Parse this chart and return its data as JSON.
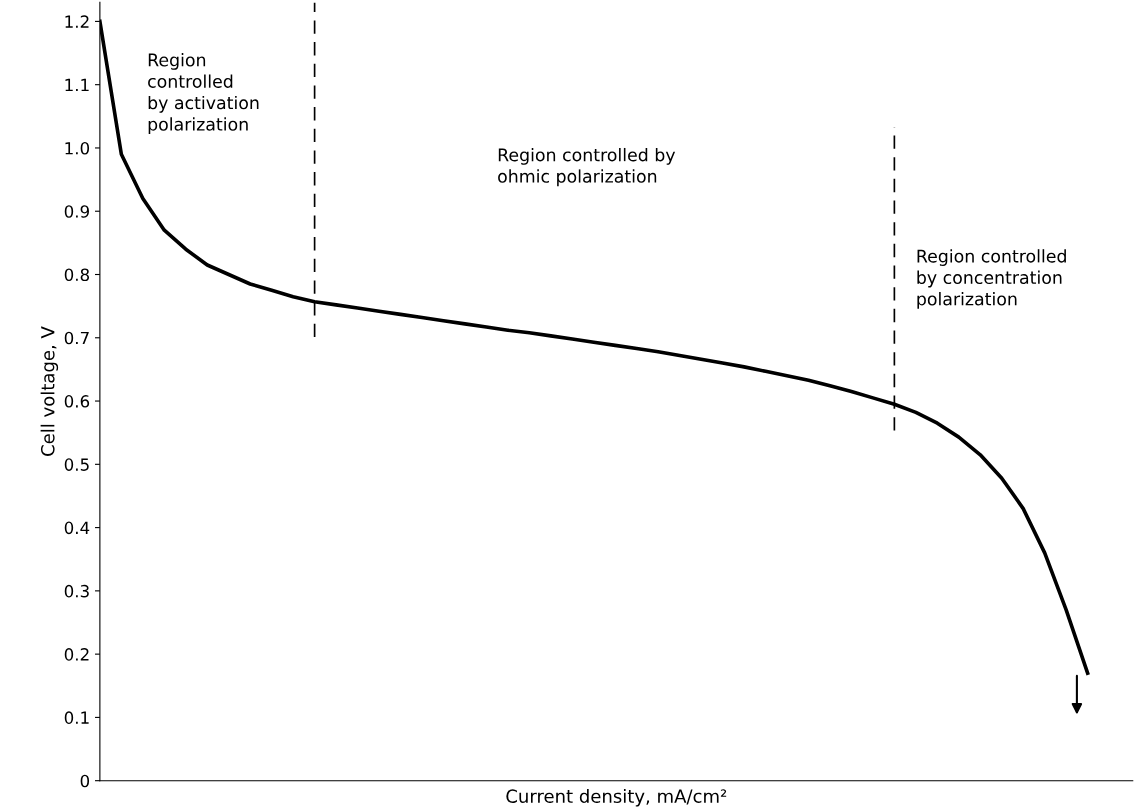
{
  "chart_data": {
    "type": "line",
    "xlabel": "Current density, mA/cm²",
    "ylabel": "Cell voltage, V",
    "categories": [
      null,
      null,
      null,
      null,
      null,
      null,
      null,
      null,
      null,
      null,
      null,
      null,
      null,
      null,
      null,
      null,
      null,
      null,
      null,
      null,
      null,
      null,
      null,
      null,
      null,
      null,
      null,
      null,
      null,
      null,
      null,
      null,
      null,
      null,
      null,
      null,
      null,
      null,
      null,
      null,
      null,
      null,
      null,
      null,
      null,
      null,
      null
    ],
    "series": [
      {
        "color": "#000000",
        "values": [
          1.2,
          0.99,
          0.92,
          0.87,
          0.84,
          0.815,
          0.8,
          0.785,
          0.775,
          0.765,
          0.757,
          0.752,
          0.747,
          0.742,
          0.737,
          0.732,
          0.727,
          0.722,
          0.717,
          0.712,
          0.708,
          0.703,
          0.698,
          0.693,
          0.688,
          0.683,
          0.678,
          0.672,
          0.666,
          0.66,
          0.654,
          0.647,
          0.64,
          0.633,
          0.624,
          0.615,
          0.605,
          0.595,
          0.582,
          0.565,
          0.543,
          0.515,
          0.478,
          0.43,
          0.36,
          0.27,
          0.17
        ]
      }
    ],
    "ylim": [
      0,
      1.23
    ],
    "yticks": [
      {
        "value": 0,
        "label": "0"
      },
      0.1,
      0.2,
      0.3,
      0.4,
      0.5,
      0.6,
      0.7,
      0.8,
      0.9,
      {
        "value": 1,
        "label": "1.0"
      },
      1.1,
      1.2
    ],
    "annotations": [
      "Region\ncontrolled\nby activation\npolarization",
      "Region controlled by\nohmic polarization",
      "Region controlled\nby concentration\npolarization"
    ],
    "tick_labels": "y",
    "grid": false,
    "legend": false,
    "marker": "none",
    "line_style": "solid"
  }
}
